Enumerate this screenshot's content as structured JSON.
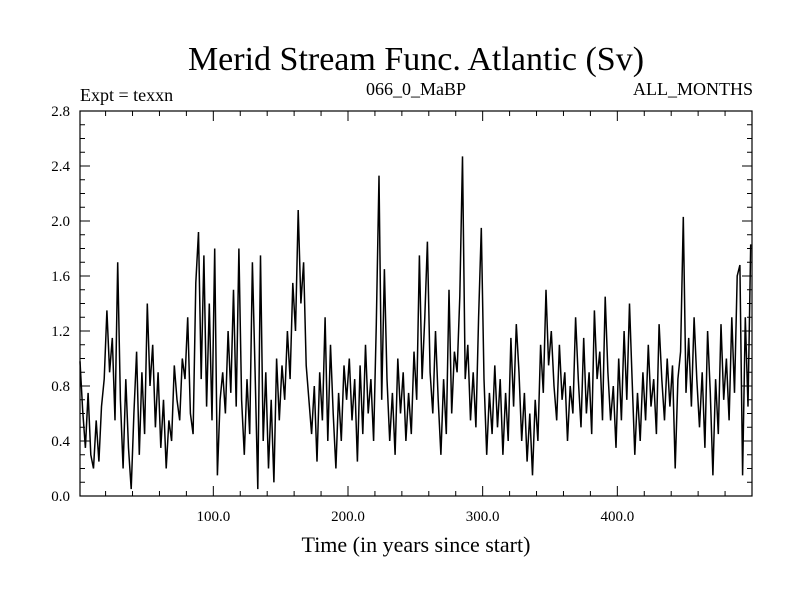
{
  "chart_data": {
    "type": "line",
    "title": "Merid Stream Func. Atlantic (Sv)",
    "header_left": "Expt = texxn",
    "header_center": "066_0_MaBP",
    "header_right": "ALL_MONTHS",
    "xlabel": "Time (in years since start)",
    "ylabel": "",
    "xlim": [
      1,
      500
    ],
    "ylim": [
      0.0,
      2.8
    ],
    "xticks": [
      100,
      200,
      300,
      400
    ],
    "xtick_labels": [
      "100.0",
      "200.0",
      "300.0",
      "400.0"
    ],
    "yticks": [
      0.0,
      0.4,
      0.8,
      1.2,
      1.6,
      2.0,
      2.4,
      2.8
    ],
    "ytick_labels": [
      "0.0",
      "0.4",
      "0.8",
      "1.2",
      "1.6",
      "2.0",
      "2.4",
      "2.8"
    ],
    "grid": false,
    "series": [
      {
        "color": "#000000",
        "points": [
          [
            1,
            0.98
          ],
          [
            3,
            0.62
          ],
          [
            5,
            0.35
          ],
          [
            7,
            0.75
          ],
          [
            9,
            0.3
          ],
          [
            11,
            0.2
          ],
          [
            13,
            0.55
          ],
          [
            15,
            0.25
          ],
          [
            17,
            0.65
          ],
          [
            19,
            0.85
          ],
          [
            21,
            1.35
          ],
          [
            23,
            0.9
          ],
          [
            25,
            1.15
          ],
          [
            27,
            0.55
          ],
          [
            29,
            1.7
          ],
          [
            31,
            0.7
          ],
          [
            33,
            0.2
          ],
          [
            35,
            0.85
          ],
          [
            37,
            0.35
          ],
          [
            39,
            0.05
          ],
          [
            41,
            0.6
          ],
          [
            43,
            1.05
          ],
          [
            45,
            0.3
          ],
          [
            47,
            0.9
          ],
          [
            49,
            0.45
          ],
          [
            51,
            1.4
          ],
          [
            53,
            0.8
          ],
          [
            55,
            1.1
          ],
          [
            57,
            0.5
          ],
          [
            59,
            0.9
          ],
          [
            61,
            0.35
          ],
          [
            63,
            0.7
          ],
          [
            65,
            0.2
          ],
          [
            67,
            0.55
          ],
          [
            69,
            0.4
          ],
          [
            71,
            0.95
          ],
          [
            73,
            0.7
          ],
          [
            75,
            0.55
          ],
          [
            77,
            1.0
          ],
          [
            79,
            0.85
          ],
          [
            81,
            1.3
          ],
          [
            83,
            0.6
          ],
          [
            85,
            0.45
          ],
          [
            87,
            1.55
          ],
          [
            89,
            1.92
          ],
          [
            91,
            0.85
          ],
          [
            93,
            1.75
          ],
          [
            95,
            0.65
          ],
          [
            97,
            1.4
          ],
          [
            99,
            0.55
          ],
          [
            101,
            1.8
          ],
          [
            103,
            0.15
          ],
          [
            105,
            0.7
          ],
          [
            107,
            0.9
          ],
          [
            109,
            0.6
          ],
          [
            111,
            1.2
          ],
          [
            113,
            0.75
          ],
          [
            115,
            1.5
          ],
          [
            117,
            0.65
          ],
          [
            119,
            1.8
          ],
          [
            121,
            0.7
          ],
          [
            123,
            0.3
          ],
          [
            125,
            0.85
          ],
          [
            127,
            0.45
          ],
          [
            129,
            1.7
          ],
          [
            131,
            0.9
          ],
          [
            133,
            0.05
          ],
          [
            135,
            1.75
          ],
          [
            137,
            0.4
          ],
          [
            139,
            0.9
          ],
          [
            141,
            0.2
          ],
          [
            143,
            0.7
          ],
          [
            145,
            0.1
          ],
          [
            147,
            1.0
          ],
          [
            149,
            0.55
          ],
          [
            151,
            0.95
          ],
          [
            153,
            0.7
          ],
          [
            155,
            1.2
          ],
          [
            157,
            0.85
          ],
          [
            159,
            1.55
          ],
          [
            161,
            1.2
          ],
          [
            163,
            2.08
          ],
          [
            165,
            1.4
          ],
          [
            167,
            1.7
          ],
          [
            169,
            0.95
          ],
          [
            171,
            0.7
          ],
          [
            173,
            0.45
          ],
          [
            175,
            0.8
          ],
          [
            177,
            0.25
          ],
          [
            179,
            0.9
          ],
          [
            181,
            0.55
          ],
          [
            183,
            1.3
          ],
          [
            185,
            0.4
          ],
          [
            187,
            1.1
          ],
          [
            189,
            0.6
          ],
          [
            191,
            0.2
          ],
          [
            193,
            0.75
          ],
          [
            195,
            0.4
          ],
          [
            197,
            0.95
          ],
          [
            199,
            0.7
          ],
          [
            201,
            1.0
          ],
          [
            203,
            0.55
          ],
          [
            205,
            0.85
          ],
          [
            207,
            0.25
          ],
          [
            209,
            0.95
          ],
          [
            211,
            0.45
          ],
          [
            213,
            1.1
          ],
          [
            215,
            0.6
          ],
          [
            217,
            0.85
          ],
          [
            219,
            0.4
          ],
          [
            221,
            1.25
          ],
          [
            223,
            2.33
          ],
          [
            225,
            0.7
          ],
          [
            227,
            1.65
          ],
          [
            229,
            0.85
          ],
          [
            231,
            0.4
          ],
          [
            233,
            0.75
          ],
          [
            235,
            0.3
          ],
          [
            237,
            1.0
          ],
          [
            239,
            0.6
          ],
          [
            241,
            0.9
          ],
          [
            243,
            0.4
          ],
          [
            245,
            0.75
          ],
          [
            247,
            0.45
          ],
          [
            249,
            1.05
          ],
          [
            251,
            0.7
          ],
          [
            253,
            1.75
          ],
          [
            255,
            0.85
          ],
          [
            257,
            1.3
          ],
          [
            259,
            1.85
          ],
          [
            261,
            0.9
          ],
          [
            263,
            0.6
          ],
          [
            265,
            1.2
          ],
          [
            267,
            0.7
          ],
          [
            269,
            0.3
          ],
          [
            271,
            0.85
          ],
          [
            273,
            0.45
          ],
          [
            275,
            1.5
          ],
          [
            277,
            0.6
          ],
          [
            279,
            1.05
          ],
          [
            281,
            0.9
          ],
          [
            283,
            1.45
          ],
          [
            285,
            2.47
          ],
          [
            287,
            0.85
          ],
          [
            289,
            1.1
          ],
          [
            291,
            0.55
          ],
          [
            293,
            0.9
          ],
          [
            295,
            0.5
          ],
          [
            297,
            1.3
          ],
          [
            299,
            1.95
          ],
          [
            301,
            0.85
          ],
          [
            303,
            0.3
          ],
          [
            305,
            0.75
          ],
          [
            307,
            0.45
          ],
          [
            309,
            0.95
          ],
          [
            311,
            0.5
          ],
          [
            313,
            0.85
          ],
          [
            315,
            0.3
          ],
          [
            317,
            0.75
          ],
          [
            319,
            0.4
          ],
          [
            321,
            1.15
          ],
          [
            323,
            0.65
          ],
          [
            325,
            1.25
          ],
          [
            327,
            0.9
          ],
          [
            329,
            0.4
          ],
          [
            331,
            0.75
          ],
          [
            333,
            0.25
          ],
          [
            335,
            0.6
          ],
          [
            337,
            0.15
          ],
          [
            339,
            0.7
          ],
          [
            341,
            0.4
          ],
          [
            343,
            1.1
          ],
          [
            345,
            0.75
          ],
          [
            347,
            1.5
          ],
          [
            349,
            0.95
          ],
          [
            351,
            1.2
          ],
          [
            353,
            0.8
          ],
          [
            355,
            0.55
          ],
          [
            357,
            1.1
          ],
          [
            359,
            0.7
          ],
          [
            361,
            0.9
          ],
          [
            363,
            0.4
          ],
          [
            365,
            0.8
          ],
          [
            367,
            0.6
          ],
          [
            369,
            1.3
          ],
          [
            371,
            0.85
          ],
          [
            373,
            0.5
          ],
          [
            375,
            1.15
          ],
          [
            377,
            0.6
          ],
          [
            379,
            0.9
          ],
          [
            381,
            0.45
          ],
          [
            383,
            1.35
          ],
          [
            385,
            0.85
          ],
          [
            387,
            1.05
          ],
          [
            389,
            0.55
          ],
          [
            391,
            1.45
          ],
          [
            393,
            0.9
          ],
          [
            395,
            0.55
          ],
          [
            397,
            0.8
          ],
          [
            399,
            0.35
          ],
          [
            401,
            1.0
          ],
          [
            403,
            0.55
          ],
          [
            405,
            1.2
          ],
          [
            407,
            0.7
          ],
          [
            409,
            1.4
          ],
          [
            411,
            0.85
          ],
          [
            413,
            0.3
          ],
          [
            415,
            0.75
          ],
          [
            417,
            0.4
          ],
          [
            419,
            0.9
          ],
          [
            421,
            0.55
          ],
          [
            423,
            1.1
          ],
          [
            425,
            0.65
          ],
          [
            427,
            0.85
          ],
          [
            429,
            0.45
          ],
          [
            431,
            1.25
          ],
          [
            433,
            0.85
          ],
          [
            435,
            0.55
          ],
          [
            437,
            1.0
          ],
          [
            439,
            0.65
          ],
          [
            441,
            0.95
          ],
          [
            443,
            0.2
          ],
          [
            445,
            0.85
          ],
          [
            447,
            1.05
          ],
          [
            449,
            2.03
          ],
          [
            451,
            0.75
          ],
          [
            453,
            1.15
          ],
          [
            455,
            0.65
          ],
          [
            457,
            1.3
          ],
          [
            459,
            0.85
          ],
          [
            461,
            0.5
          ],
          [
            463,
            0.9
          ],
          [
            465,
            0.35
          ],
          [
            467,
            1.2
          ],
          [
            469,
            0.75
          ],
          [
            471,
            0.15
          ],
          [
            473,
            0.85
          ],
          [
            475,
            0.45
          ],
          [
            477,
            1.25
          ],
          [
            479,
            0.7
          ],
          [
            481,
            1.0
          ],
          [
            483,
            0.55
          ],
          [
            485,
            1.3
          ],
          [
            487,
            0.75
          ],
          [
            489,
            1.6
          ],
          [
            491,
            1.68
          ],
          [
            493,
            0.15
          ],
          [
            495,
            1.3
          ],
          [
            497,
            0.65
          ],
          [
            499,
            1.83
          ]
        ]
      }
    ]
  }
}
